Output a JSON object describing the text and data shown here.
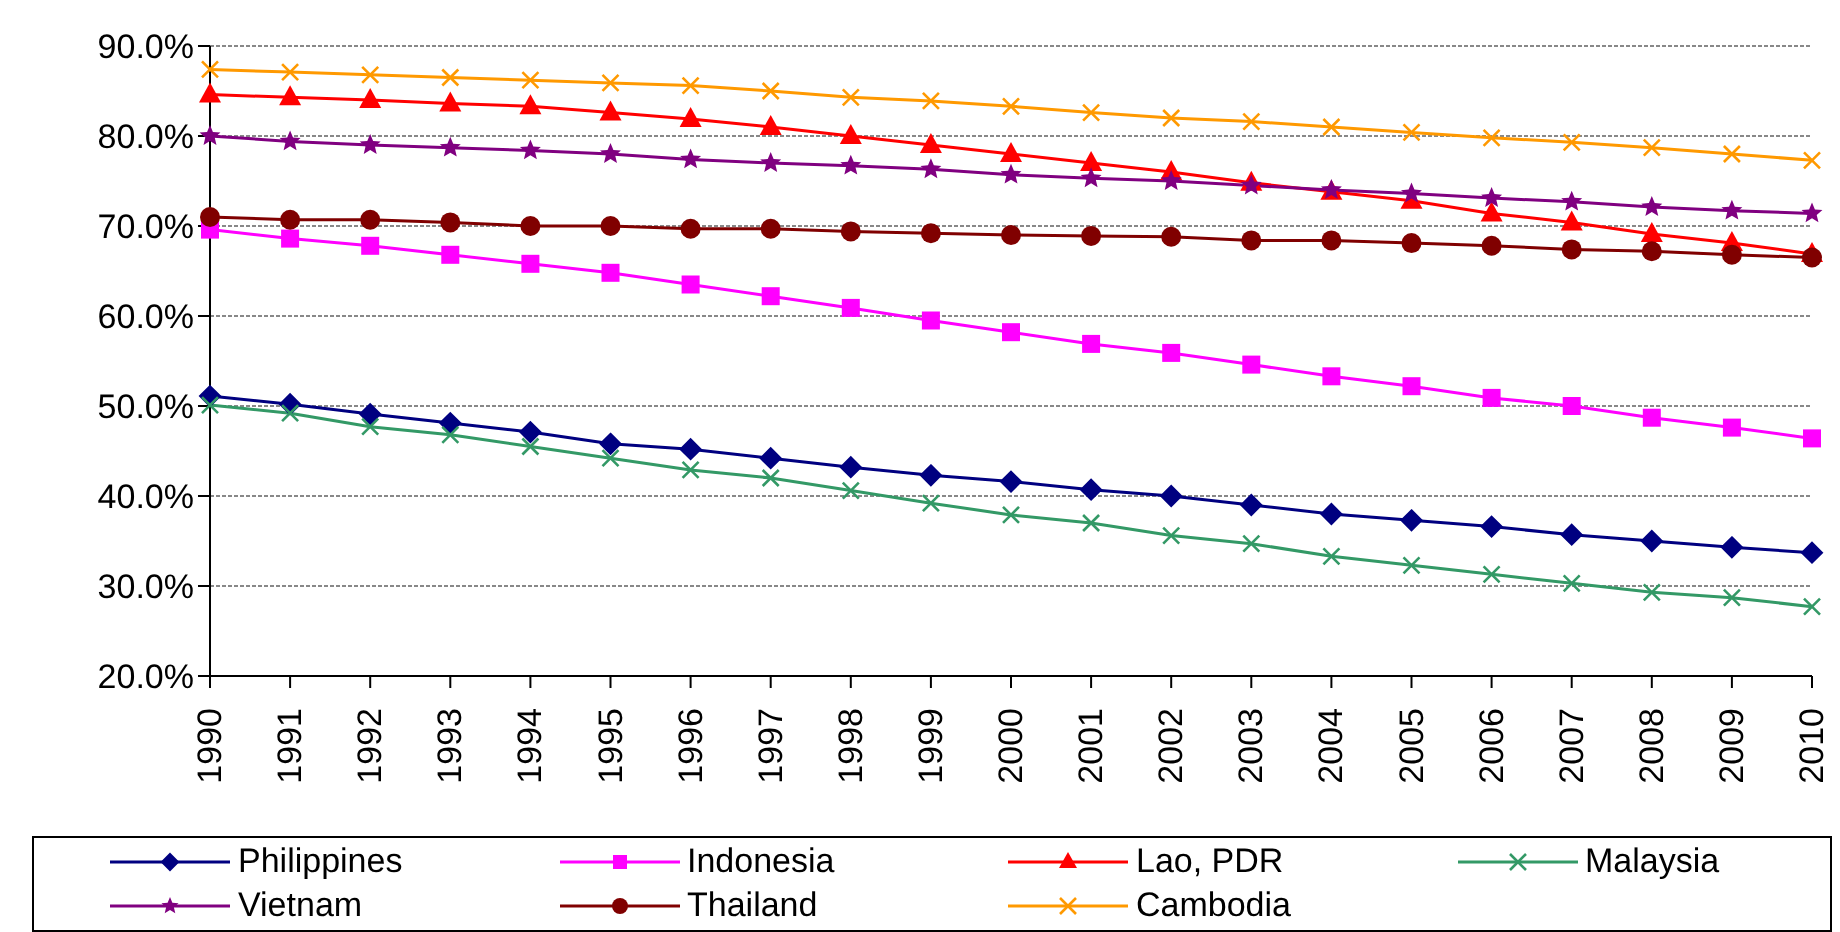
{
  "chart_data": {
    "type": "line",
    "categories": [
      "1990",
      "1991",
      "1992",
      "1993",
      "1994",
      "1995",
      "1996",
      "1997",
      "1998",
      "1999",
      "2000",
      "2001",
      "2002",
      "2003",
      "2004",
      "2005",
      "2006",
      "2007",
      "2008",
      "2009",
      "2010"
    ],
    "series": [
      {
        "name": "Philippines",
        "color": "#000080",
        "marker": "diamond",
        "values": [
          51.1,
          50.2,
          49.1,
          48.1,
          47.1,
          45.8,
          45.2,
          44.2,
          43.2,
          42.3,
          41.6,
          40.7,
          40.0,
          39.0,
          38.0,
          37.3,
          36.6,
          35.7,
          35.0,
          34.3,
          33.7
        ]
      },
      {
        "name": "Indonesia",
        "color": "#ff00ff",
        "marker": "square",
        "values": [
          69.6,
          68.6,
          67.8,
          66.8,
          65.8,
          64.8,
          63.5,
          62.2,
          60.9,
          59.5,
          58.2,
          56.9,
          55.9,
          54.6,
          53.3,
          52.2,
          50.9,
          50.0,
          48.7,
          47.6,
          46.4
        ]
      },
      {
        "name": "Lao, PDR",
        "color": "#ff0000",
        "marker": "triangle",
        "values": [
          84.6,
          84.3,
          84.0,
          83.6,
          83.3,
          82.6,
          81.9,
          81.0,
          80.0,
          79.0,
          78.0,
          77.0,
          76.0,
          74.8,
          73.8,
          72.8,
          71.4,
          70.4,
          69.1,
          68.1,
          66.9
        ]
      },
      {
        "name": "Malaysia",
        "color": "#339966",
        "marker": "cross",
        "values": [
          50.1,
          49.2,
          47.7,
          46.8,
          45.5,
          44.2,
          42.9,
          42.0,
          40.6,
          39.2,
          37.9,
          37.0,
          35.6,
          34.7,
          33.3,
          32.3,
          31.3,
          30.3,
          29.3,
          28.7,
          27.7
        ]
      },
      {
        "name": "Vietnam",
        "color": "#800080",
        "marker": "star",
        "values": [
          80.0,
          79.4,
          79.0,
          78.7,
          78.4,
          78.0,
          77.4,
          77.0,
          76.7,
          76.3,
          75.7,
          75.3,
          75.0,
          74.5,
          74.0,
          73.6,
          73.1,
          72.7,
          72.1,
          71.7,
          71.4
        ]
      },
      {
        "name": "Thailand",
        "color": "#800000",
        "marker": "circle",
        "values": [
          71.0,
          70.7,
          70.7,
          70.4,
          70.0,
          70.0,
          69.7,
          69.7,
          69.4,
          69.2,
          69.0,
          68.9,
          68.8,
          68.4,
          68.4,
          68.1,
          67.8,
          67.4,
          67.2,
          66.8,
          66.5
        ]
      },
      {
        "name": "Cambodia",
        "color": "#ff9900",
        "marker": "cross",
        "values": [
          87.4,
          87.1,
          86.8,
          86.5,
          86.2,
          85.9,
          85.6,
          85.0,
          84.3,
          83.9,
          83.3,
          82.6,
          82.0,
          81.6,
          81.0,
          80.4,
          79.8,
          79.3,
          78.7,
          78.0,
          77.3
        ]
      }
    ],
    "ylim": [
      20,
      90
    ],
    "yticks": [
      {
        "value": 20,
        "label": "20.0%"
      },
      {
        "value": 30,
        "label": "30.0%"
      },
      {
        "value": 40,
        "label": "40.0%"
      },
      {
        "value": 50,
        "label": "50.0%"
      },
      {
        "value": 60,
        "label": "60.0%"
      },
      {
        "value": 70,
        "label": "70.0%"
      },
      {
        "value": 80,
        "label": "80.0%"
      },
      {
        "value": 90,
        "label": "90.0%"
      }
    ],
    "grid": "y",
    "legend": "bottom",
    "line_style": "solid"
  }
}
